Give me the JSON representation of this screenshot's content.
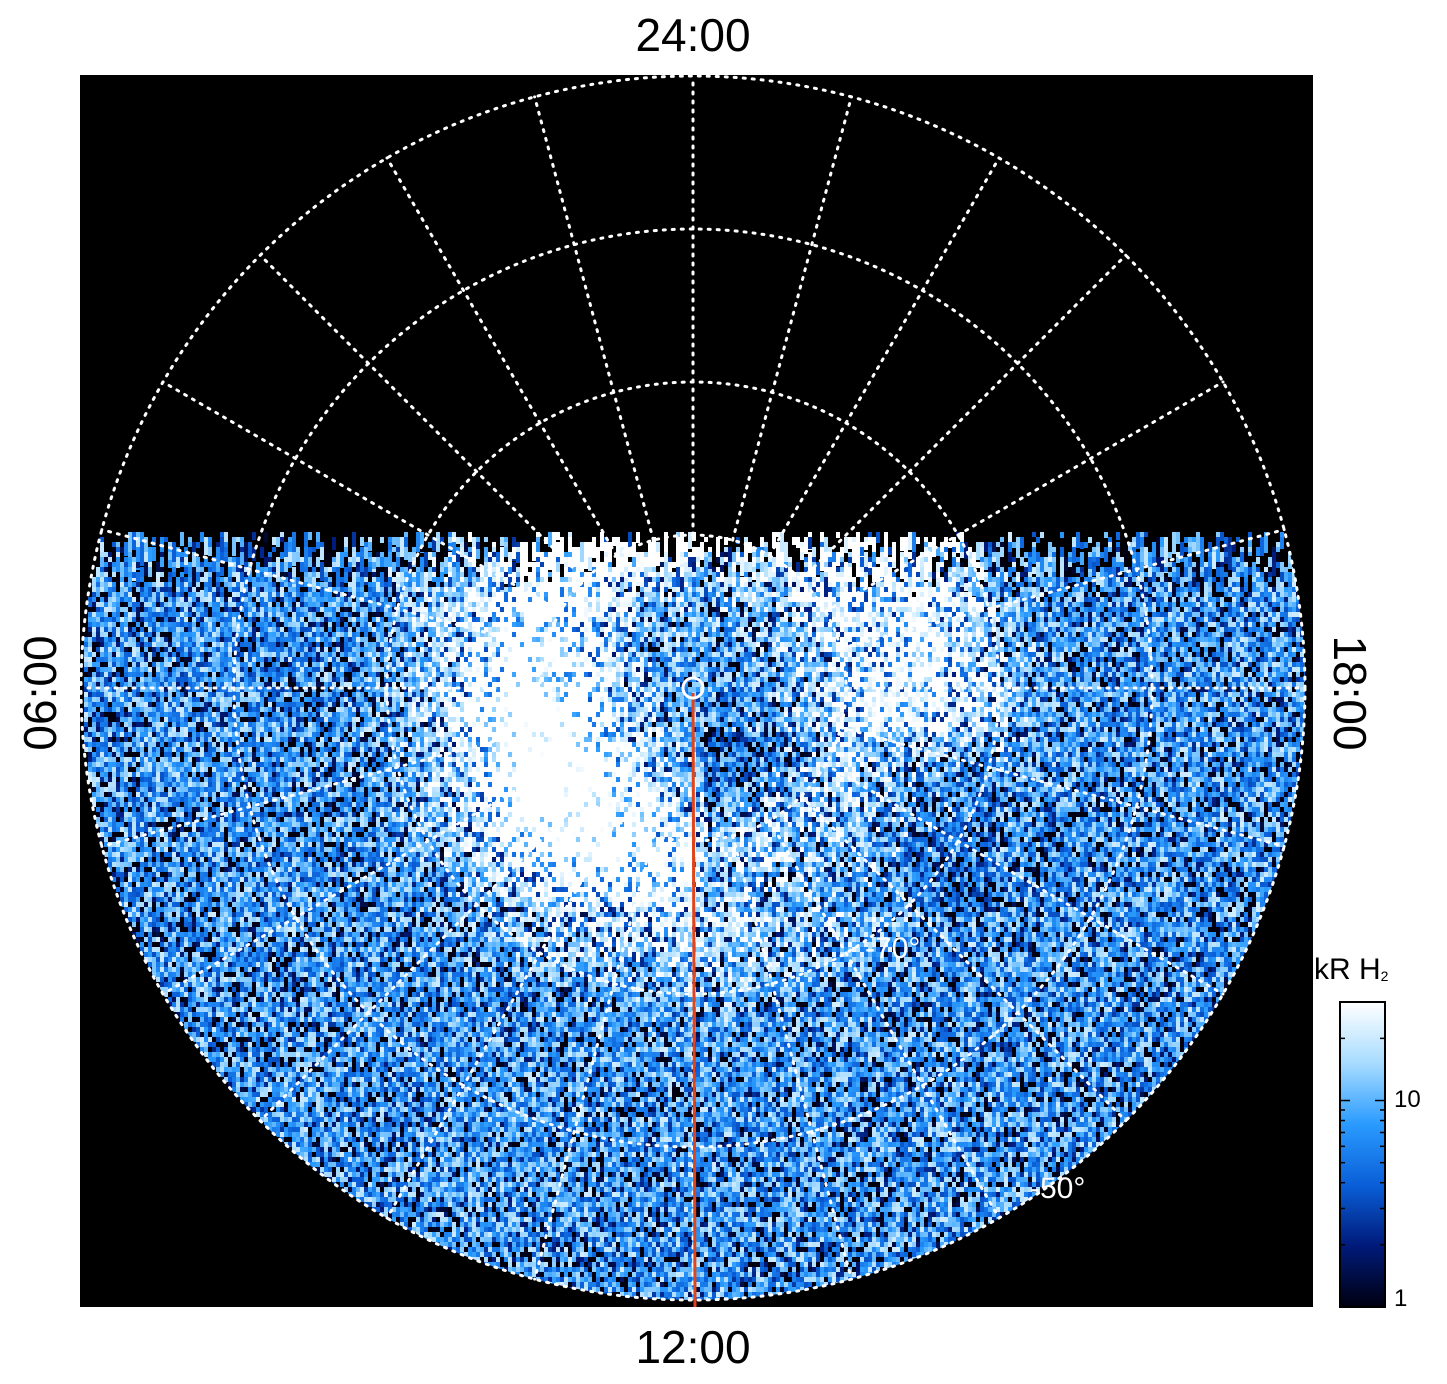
{
  "chart_data": {
    "type": "heatmap",
    "projection": "polar",
    "local_time_labels": {
      "top": "24:00",
      "bottom": "12:00",
      "left": "06:00",
      "right": "18:00"
    },
    "latitude_labels": [
      "-70°",
      "-50°"
    ],
    "latitude_rings_deg": [
      80,
      70,
      60,
      50
    ],
    "meridian_spacing_hours": 1,
    "grid": true,
    "grid_style": "dotted white",
    "colorbar": {
      "title": "kR H",
      "title_sub": "2",
      "scale": "log",
      "range": [
        1,
        30
      ],
      "tick_labels": [
        "1",
        "10"
      ],
      "tick_values": [
        1,
        10
      ],
      "colors": [
        "#000010",
        "#001a7a",
        "#0a5fd8",
        "#2a9bff",
        "#a8dcff",
        "#ffffff"
      ]
    },
    "meridian_line_color": "#e0441a",
    "background": "#000000"
  }
}
